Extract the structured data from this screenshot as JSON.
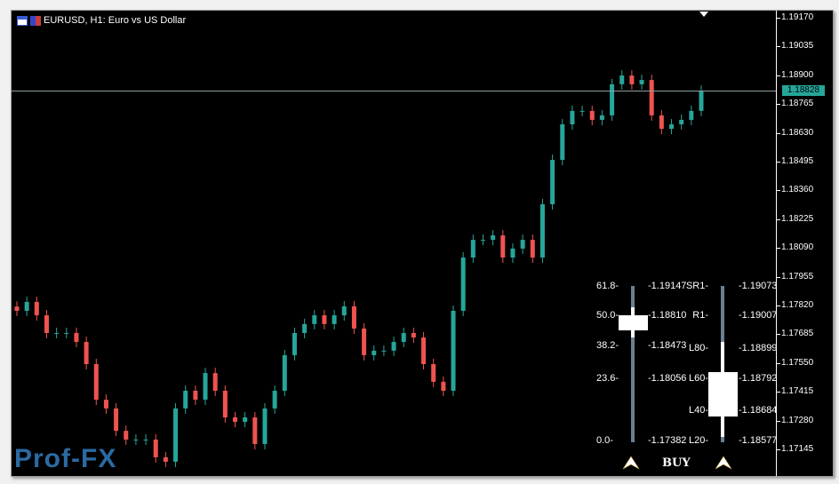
{
  "window": {
    "title": "EURUSD, H1:  Euro vs US Dollar"
  },
  "colors": {
    "bull": "#26a69a",
    "bear": "#ef5350",
    "bid_line": "#8e9ea2",
    "background": "#000000"
  },
  "chart_data": {
    "type": "candlestick",
    "symbol": "EURUSD",
    "timeframe": "H1",
    "ylim": [
      1.1712,
      1.192
    ],
    "y_ticks": [
      "1.19170",
      "1.19035",
      "1.18900",
      "1.18765",
      "1.18630",
      "1.18495",
      "1.18360",
      "1.18225",
      "1.18090",
      "1.17955",
      "1.17820",
      "1.17685",
      "1.17550",
      "1.17415",
      "1.17280",
      "1.17145"
    ],
    "bid": 1.18828,
    "bid_label": "1.18828",
    "closes": [
      1.17795,
      1.17837,
      1.17774,
      1.17691,
      1.17691,
      1.17691,
      1.17649,
      1.17545,
      1.17378,
      1.17337,
      1.17232,
      1.17191,
      1.17191,
      1.17191,
      1.17108,
      1.17087,
      1.17337,
      1.1742,
      1.17378,
      1.17503,
      1.1742,
      1.17295,
      1.17274,
      1.17295,
      1.1717,
      1.17337,
      1.1742,
      1.17587,
      1.17691,
      1.17733,
      1.17774,
      1.17733,
      1.17774,
      1.17816,
      1.17712,
      1.17587,
      1.17608,
      1.17608,
      1.17649,
      1.17691,
      1.1767,
      1.17545,
      1.17462,
      1.1742,
      1.17795,
      1.18045,
      1.18128,
      1.18128,
      1.18149,
      1.18045,
      1.18087,
      1.18128,
      1.18045,
      1.18295,
      1.18503,
      1.1867,
      1.18733,
      1.18733,
      1.18691,
      1.18712,
      1.18858,
      1.18899,
      1.18858,
      1.18878,
      1.18712,
      1.18649,
      1.1867,
      1.18691,
      1.18733,
      1.18828
    ]
  },
  "panel": {
    "fib": [
      {
        "level": "61.8-",
        "price": "-1.19147"
      },
      {
        "level": "50.0-",
        "price": "-1.18810"
      },
      {
        "level": "38.2-",
        "price": "-1.18473"
      },
      {
        "level": "23.6-",
        "price": "-1.18056"
      },
      {
        "level": "0.0-",
        "price": "-1.17382"
      }
    ],
    "pivots": [
      {
        "level": "SR1-",
        "price": "-1.19073"
      },
      {
        "level": "R1-",
        "price": "-1.19007"
      },
      {
        "level": "L80-",
        "price": "-1.18899"
      },
      {
        "level": "L60-",
        "price": "-1.18792"
      },
      {
        "level": "L40-",
        "price": "-1.18684"
      },
      {
        "level": "L20-",
        "price": "-1.18577"
      }
    ],
    "signal": "BUY"
  },
  "logo": "Prof-FX"
}
